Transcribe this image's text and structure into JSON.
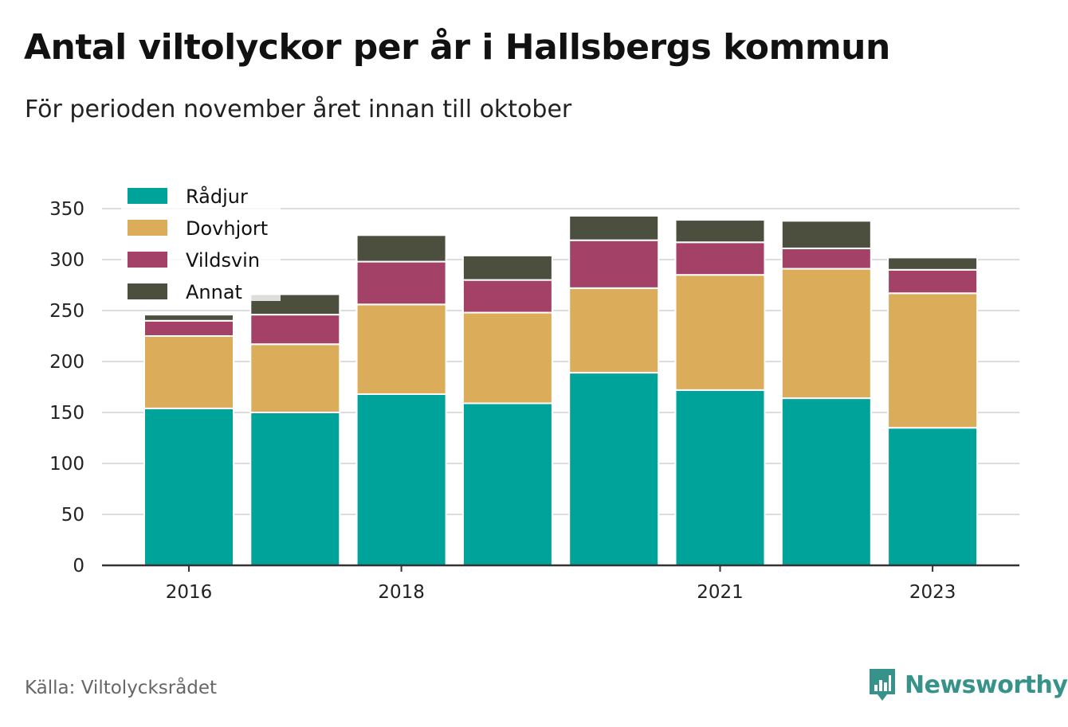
{
  "header": {
    "title": "Antal viltolyckor per år i Hallsbergs kommun",
    "subtitle": "För perioden november året innan till oktober"
  },
  "footer": {
    "source": "Källa: Viltolycksrådet",
    "brand": "Newsworthy"
  },
  "chart_data": {
    "type": "bar",
    "stacked": true,
    "title": "Antal viltolyckor per år i Hallsbergs kommun",
    "subtitle": "För perioden november året innan till oktober",
    "xlabel": "",
    "ylabel": "",
    "ylim": [
      0,
      350
    ],
    "yticks": [
      0,
      50,
      100,
      150,
      200,
      250,
      300,
      350
    ],
    "x": [
      2016,
      2017,
      2018,
      2019,
      2020,
      2021,
      2022,
      2023
    ],
    "xtick_labels": [
      "2016",
      "2018",
      "2021",
      "2023"
    ],
    "grid": true,
    "legend_position": "top-left",
    "series": [
      {
        "name": "Rådjur",
        "color": "#00a39a",
        "values": [
          154,
          150,
          168,
          159,
          189,
          172,
          164,
          135
        ]
      },
      {
        "name": "Dovhjort",
        "color": "#dbac5a",
        "values": [
          71,
          67,
          88,
          89,
          83,
          113,
          127,
          132
        ]
      },
      {
        "name": "Vildsvin",
        "color": "#a44167",
        "values": [
          15,
          29,
          42,
          32,
          47,
          32,
          20,
          23
        ]
      },
      {
        "name": "Annat",
        "color": "#4c4f3e",
        "values": [
          6,
          20,
          26,
          24,
          24,
          22,
          27,
          12
        ]
      }
    ]
  }
}
